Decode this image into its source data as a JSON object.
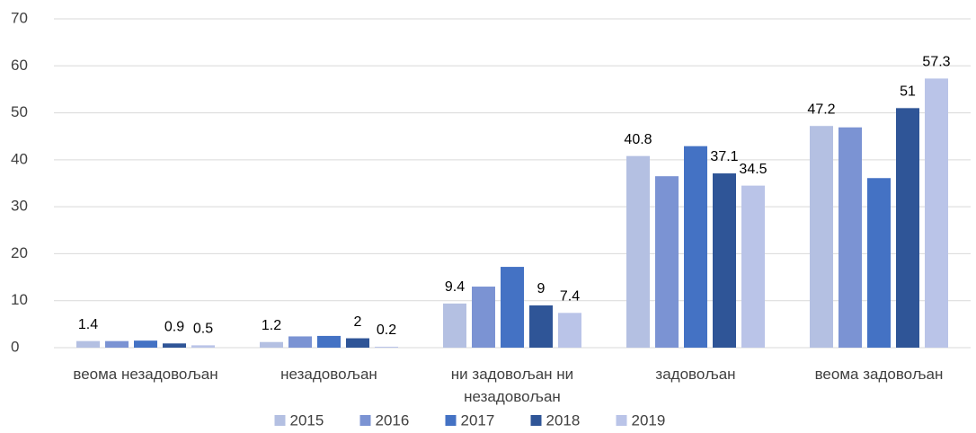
{
  "chart_data": {
    "type": "bar",
    "categories": [
      "веома незадовољан",
      "незадовољан",
      "ни задовољан ни незадовољан",
      "задовољан",
      "веома задовољан"
    ],
    "series": [
      {
        "name": "2015",
        "color": "#b4c0e2",
        "values": [
          1.4,
          1.2,
          9.4,
          40.8,
          47.2
        ],
        "value_labels": [
          "1.4",
          "1.2",
          "9.4",
          "40.8",
          "47.2"
        ]
      },
      {
        "name": "2016",
        "color": "#7b93d3",
        "values": [
          1.4,
          2.4,
          13,
          36.5,
          46.9
        ],
        "value_labels": [
          null,
          null,
          null,
          null,
          null
        ]
      },
      {
        "name": "2017",
        "color": "#4472c4",
        "values": [
          1.5,
          2.5,
          17.2,
          42.9,
          36.1
        ],
        "value_labels": [
          null,
          null,
          null,
          null,
          null
        ]
      },
      {
        "name": "2018",
        "color": "#2f5597",
        "values": [
          0.9,
          2,
          9,
          37.1,
          51
        ],
        "value_labels": [
          "0.9",
          "2",
          "9",
          "37.1",
          "51"
        ]
      },
      {
        "name": "2019",
        "color": "#bac4e8",
        "values": [
          0.5,
          0.2,
          7.4,
          34.5,
          57.3
        ],
        "value_labels": [
          "0.5",
          "0.2",
          "7.4",
          "34.5",
          "57.3"
        ]
      }
    ],
    "ylim": [
      0,
      70
    ],
    "yticks": [
      0,
      10,
      20,
      30,
      40,
      50,
      60,
      70
    ],
    "grid": true,
    "legend": "bottom"
  }
}
